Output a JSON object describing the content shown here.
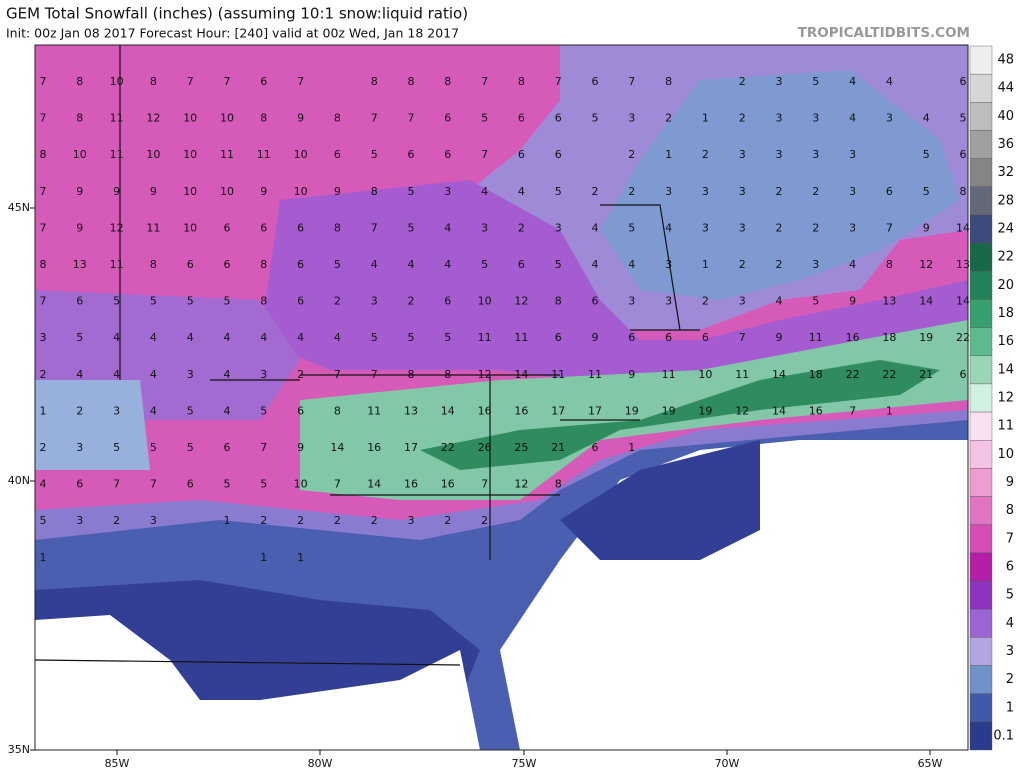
{
  "header": {
    "title": "GEM Total Snowfall (inches) (assuming 10:1 snow:liquid ratio)",
    "subtitle": "Init: 00z Jan 08 2017   Forecast Hour: [240]   valid at 00z Wed, Jan 18 2017",
    "watermark": "TROPICALTIDBITS.COM"
  },
  "axes": {
    "lat_labels": [
      "45N",
      "40N",
      "35N"
    ],
    "lon_labels": [
      "85W",
      "80W",
      "75W",
      "70W",
      "65W"
    ]
  },
  "colorbar": {
    "levels": [
      48,
      44,
      40,
      36,
      32,
      28,
      24,
      22,
      20,
      18,
      16,
      14,
      12,
      11,
      10,
      9,
      8,
      7,
      6,
      5,
      4,
      3,
      2,
      1,
      0.1
    ],
    "colors": [
      "#eeeeee",
      "#d6d6d6",
      "#bdbdbd",
      "#a0a0a0",
      "#858585",
      "#626a7a",
      "#3c4a7c",
      "#17694a",
      "#24825a",
      "#37a06e",
      "#5dba8c",
      "#98d6b6",
      "#d2f0e2",
      "#f9e1f1",
      "#f4c2e2",
      "#ee9cd2",
      "#e274c4",
      "#d34db4",
      "#b51ea6",
      "#8c33bf",
      "#9c64d2",
      "#b3a4e2",
      "#7192c9",
      "#4059a8",
      "#2b3a8c"
    ]
  },
  "map_labels": {
    "rows": [
      [
        7,
        8,
        10,
        8,
        7,
        7,
        6,
        7,
        null,
        8,
        8,
        8,
        7,
        8,
        7,
        6,
        7,
        8,
        null,
        2,
        3,
        5,
        4,
        4,
        null,
        6
      ],
      [
        7,
        8,
        11,
        12,
        10,
        10,
        8,
        9,
        8,
        7,
        7,
        6,
        5,
        6,
        6,
        5,
        3,
        2,
        1,
        2,
        3,
        3,
        4,
        3,
        4,
        5
      ],
      [
        8,
        10,
        11,
        10,
        10,
        11,
        11,
        10,
        6,
        5,
        6,
        6,
        7,
        6,
        6,
        null,
        2,
        1,
        2,
        3,
        3,
        3,
        3,
        null,
        5,
        6
      ],
      [
        7,
        9,
        9,
        9,
        10,
        10,
        9,
        10,
        9,
        8,
        5,
        3,
        4,
        4,
        5,
        2,
        2,
        3,
        3,
        3,
        2,
        2,
        3,
        6,
        5,
        8
      ],
      [
        7,
        9,
        12,
        11,
        10,
        6,
        6,
        6,
        8,
        7,
        5,
        4,
        3,
        2,
        3,
        4,
        5,
        4,
        3,
        3,
        2,
        2,
        3,
        7,
        9,
        14
      ],
      [
        8,
        13,
        11,
        8,
        6,
        6,
        8,
        6,
        5,
        4,
        4,
        4,
        5,
        6,
        5,
        4,
        4,
        3,
        1,
        2,
        2,
        3,
        4,
        8,
        12,
        13
      ],
      [
        7,
        6,
        5,
        5,
        5,
        5,
        8,
        6,
        2,
        3,
        2,
        6,
        10,
        12,
        8,
        6,
        3,
        3,
        2,
        3,
        4,
        5,
        9,
        13,
        14,
        14
      ],
      [
        3,
        5,
        4,
        4,
        4,
        4,
        4,
        4,
        4,
        5,
        5,
        5,
        11,
        11,
        6,
        9,
        6,
        6,
        6,
        7,
        9,
        11,
        16,
        18,
        19,
        22
      ],
      [
        2,
        4,
        4,
        4,
        3,
        4,
        3,
        2,
        7,
        7,
        8,
        8,
        12,
        14,
        11,
        11,
        9,
        11,
        10,
        11,
        14,
        18,
        22,
        22,
        21,
        6
      ],
      [
        1,
        2,
        3,
        4,
        5,
        4,
        5,
        6,
        8,
        11,
        13,
        14,
        16,
        16,
        17,
        17,
        19,
        19,
        19,
        12,
        14,
        16,
        7,
        1,
        null,
        null
      ],
      [
        2,
        3,
        5,
        5,
        5,
        6,
        7,
        9,
        14,
        16,
        17,
        22,
        26,
        25,
        21,
        6,
        1,
        null,
        null,
        null,
        null,
        null,
        null,
        null,
        null,
        null
      ],
      [
        4,
        6,
        7,
        7,
        6,
        5,
        5,
        10,
        7,
        14,
        16,
        16,
        7,
        12,
        8,
        null,
        null,
        null,
        null,
        null,
        null,
        null,
        null,
        null,
        null,
        null
      ],
      [
        5,
        3,
        2,
        3,
        null,
        1,
        2,
        2,
        2,
        2,
        3,
        2,
        2,
        null,
        null,
        null,
        null,
        null,
        null,
        null,
        null,
        null,
        null,
        null,
        null,
        null
      ],
      [
        1,
        null,
        null,
        null,
        null,
        null,
        1,
        1,
        null,
        null,
        null,
        null,
        null,
        null,
        null,
        null,
        null,
        null,
        null,
        null,
        null,
        null,
        null,
        null,
        null,
        null
      ]
    ]
  }
}
